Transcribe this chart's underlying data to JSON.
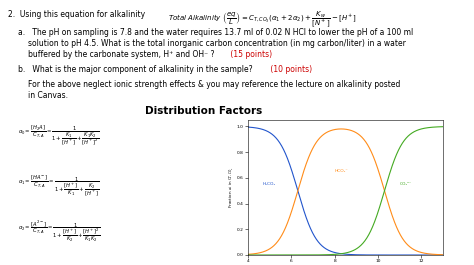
{
  "pka1": 6.3,
  "pka2": 10.3,
  "bg_color": "#ffffff",
  "text_color": "#000000",
  "red_color": "#cc0000",
  "curve_colors": [
    "#2255cc",
    "#ff8c19",
    "#44aa22"
  ],
  "curve_labels": [
    "H₂CO₃",
    "HCO₃⁻",
    "CO₃²⁻"
  ],
  "ph_range": [
    4,
    13
  ],
  "fs": 5.5,
  "fs_formula": 3.8,
  "fs_graph": 3.5,
  "fs_title": 7.5
}
